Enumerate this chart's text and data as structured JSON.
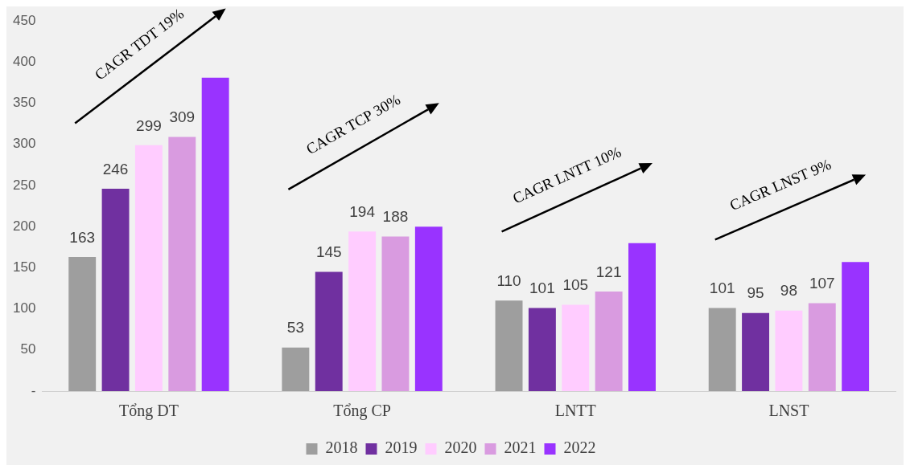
{
  "chart_data": {
    "type": "bar",
    "categories": [
      "Tổng DT",
      "Tổng CP",
      "LNTT",
      "LNST"
    ],
    "series": [
      {
        "name": "2018",
        "color": "#9e9e9e",
        "values": [
          163,
          53,
          110,
          101
        ],
        "value_labels": [
          "163",
          "53",
          "110",
          "101"
        ]
      },
      {
        "name": "2019",
        "color": "#7030a0",
        "values": [
          246,
          145,
          101,
          95
        ],
        "value_labels": [
          "246",
          "145",
          "101",
          "95"
        ]
      },
      {
        "name": "2020",
        "color": "#ffccff",
        "values": [
          299,
          194,
          105,
          98
        ],
        "value_labels": [
          "299",
          "194",
          "105",
          "98"
        ]
      },
      {
        "name": "2021",
        "color": "#d99be0",
        "values": [
          309,
          188,
          121,
          107
        ],
        "value_labels": [
          "309",
          "188",
          "121",
          "107"
        ]
      },
      {
        "name": "2022",
        "color": "#9933ff",
        "values": [
          381,
          200,
          180,
          157
        ],
        "value_labels": [
          null,
          null,
          null,
          null
        ]
      }
    ],
    "ylim": [
      0,
      450
    ],
    "yticks": [
      {
        "value": 0,
        "label": "-"
      },
      50,
      100,
      150,
      200,
      250,
      300,
      350,
      400,
      450
    ],
    "grid": false,
    "legend": "bottom",
    "annotations": [
      "CAGR TDT 19%",
      "CAGR TCP 30%",
      "CAGR LNTT 10%",
      "CAGR LNST 9%"
    ]
  }
}
